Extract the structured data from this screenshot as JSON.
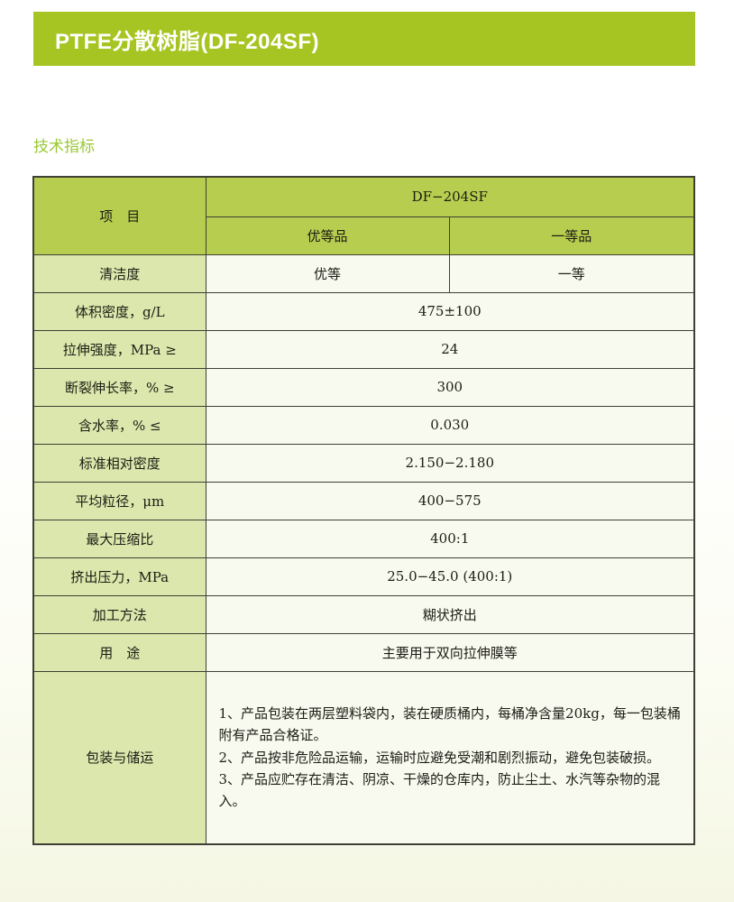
{
  "page": {
    "banner_title": "PTFE分散树脂(DF-204SF)",
    "section_heading": "技术指标"
  },
  "colors": {
    "banner_green": "#a7c522",
    "heading_green": "#9bc837",
    "table_header_green": "#b7cd4f",
    "row_label_green": "#dbe7ac",
    "value_cell_cream": "#f9faef",
    "border_dark": "#3f3f35"
  },
  "table": {
    "header": {
      "item_label": "项　目",
      "product_name": "DF−204SF",
      "grade_premium": "优等品",
      "grade_first": "一等品"
    },
    "rows": [
      {
        "label": "清洁度",
        "values": [
          "优等",
          "一等"
        ]
      },
      {
        "label": "体积密度，g/L",
        "value": "475±100"
      },
      {
        "label": "拉伸强度，MPa ≥",
        "value": "24"
      },
      {
        "label": "断裂伸长率，% ≥",
        "value": "300"
      },
      {
        "label": "含水率，% ≤",
        "value": "0.030"
      },
      {
        "label": "标准相对密度",
        "value": "2.150−2.180"
      },
      {
        "label": "平均粒径，μm",
        "value": "400−575"
      },
      {
        "label": "最大压缩比",
        "value": "400:1"
      },
      {
        "label": "挤出压力，MPa",
        "value": "25.0−45.0 (400:1)"
      },
      {
        "label": "加工方法",
        "value": "糊状挤出"
      },
      {
        "label": "用　途",
        "value": "主要用于双向拉伸膜等"
      }
    ],
    "packing": {
      "label": "包装与储运",
      "lines": [
        "1、产品包装在两层塑料袋内，装在硬质桶内，每桶净含量20kg，每一包装桶附有产品合格证。",
        "2、产品按非危险品运输，运输时应避免受潮和剧烈振动，避免包装破损。",
        "3、产品应贮存在清洁、阴凉、干燥的仓库内，防止尘土、水汽等杂物的混入。"
      ]
    }
  }
}
